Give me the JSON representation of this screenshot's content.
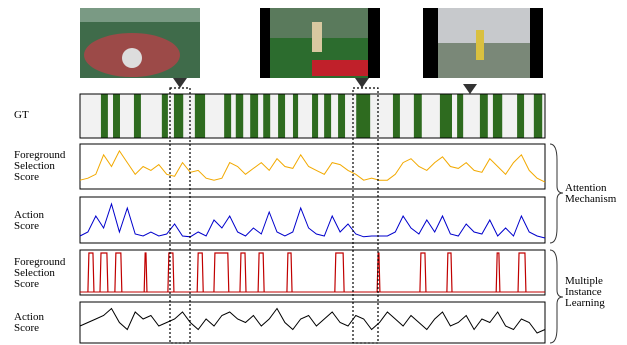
{
  "gt_label": "GT",
  "gt_segments": [
    [
      4.5,
      6.0
    ],
    [
      7.1,
      8.6
    ],
    [
      11.6,
      13.1
    ],
    [
      17.6,
      18.9
    ],
    [
      20.2,
      22.2
    ],
    [
      24.7,
      26.9
    ],
    [
      31.0,
      32.5
    ],
    [
      33.5,
      35.1
    ],
    [
      36.6,
      38.3
    ],
    [
      39.4,
      40.9
    ],
    [
      42.6,
      44.1
    ],
    [
      45.8,
      46.9
    ],
    [
      49.9,
      51.2
    ],
    [
      52.5,
      54.0
    ],
    [
      55.5,
      57.0
    ],
    [
      59.4,
      62.4
    ],
    [
      67.3,
      68.8
    ],
    [
      71.8,
      73.5
    ],
    [
      77.4,
      80.0
    ],
    [
      81.1,
      82.4
    ],
    [
      86.0,
      87.7
    ],
    [
      88.8,
      90.8
    ],
    [
      94.0,
      95.5
    ],
    [
      97.6,
      99.4
    ]
  ],
  "rows": [
    {
      "label": "Foreground Selection Score",
      "color": "#f2a900",
      "values": [
        0.15,
        0.2,
        0.3,
        0.8,
        0.5,
        0.9,
        0.6,
        0.3,
        0.5,
        0.4,
        0.55,
        0.3,
        0.25,
        0.6,
        0.35,
        0.4,
        0.2,
        0.15,
        0.2,
        0.6,
        0.5,
        0.3,
        0.45,
        0.6,
        0.4,
        0.7,
        0.5,
        0.45,
        0.8,
        0.5,
        0.4,
        0.3,
        0.6,
        0.55,
        0.4,
        0.3,
        0.15,
        0.2,
        0.15,
        0.15,
        0.3,
        0.6,
        0.7,
        0.5,
        0.4,
        0.6,
        0.75,
        0.5,
        0.45,
        0.6,
        0.4,
        0.35,
        0.7,
        0.5,
        0.3,
        0.6,
        0.8,
        0.4,
        0.2,
        0.1
      ]
    },
    {
      "label": "Action Score",
      "color": "#0000cc",
      "values": [
        0.1,
        0.2,
        0.6,
        0.3,
        0.9,
        0.2,
        0.8,
        0.15,
        0.1,
        0.2,
        0.1,
        0.15,
        0.4,
        0.1,
        0.08,
        0.2,
        0.1,
        0.5,
        0.3,
        0.6,
        0.2,
        0.1,
        0.3,
        0.15,
        0.7,
        0.2,
        0.1,
        0.2,
        0.8,
        0.3,
        0.15,
        0.1,
        0.6,
        0.2,
        0.4,
        0.15,
        0.08,
        0.1,
        0.1,
        0.1,
        0.2,
        0.6,
        0.3,
        0.15,
        0.5,
        0.2,
        0.6,
        0.15,
        0.1,
        0.4,
        0.2,
        0.15,
        0.5,
        0.1,
        0.3,
        0.1,
        0.6,
        0.2,
        0.1,
        0.05
      ]
    },
    {
      "label": "Foreground Selection Score",
      "color": "#c00000",
      "segments": [
        [
          1.7,
          3.0
        ],
        [
          4.3,
          6.0
        ],
        [
          7.5,
          9.0
        ],
        [
          13.8,
          14.4
        ],
        [
          18.9,
          20.2
        ],
        [
          25.2,
          26.5
        ],
        [
          28.8,
          32.0
        ],
        [
          34.4,
          35.7
        ],
        [
          38.3,
          39.6
        ],
        [
          44.5,
          45.6
        ],
        [
          54.8,
          56.8
        ],
        [
          63.9,
          64.5
        ],
        [
          73.1,
          74.4
        ],
        [
          78.9,
          80.0
        ],
        [
          89.5,
          90.3
        ],
        [
          94.2,
          95.9
        ]
      ]
    },
    {
      "label": "Action Score",
      "color": "#000000",
      "values": [
        0.4,
        0.5,
        0.6,
        0.7,
        0.9,
        0.5,
        0.3,
        0.8,
        0.6,
        0.7,
        0.4,
        0.5,
        0.6,
        0.8,
        0.5,
        0.3,
        0.6,
        0.4,
        0.7,
        0.8,
        0.6,
        0.5,
        0.7,
        0.4,
        0.6,
        0.9,
        0.5,
        0.3,
        0.6,
        0.7,
        0.4,
        0.6,
        0.8,
        0.5,
        0.4,
        0.7,
        0.6,
        0.3,
        0.5,
        0.8,
        0.6,
        0.4,
        0.7,
        0.5,
        0.3,
        0.6,
        0.8,
        0.4,
        0.5,
        0.7,
        0.3,
        0.6,
        0.5,
        0.8,
        0.4,
        0.3,
        0.6,
        0.5,
        0.2,
        0.3
      ]
    }
  ],
  "groups": [
    {
      "label": "Attention Mechanism"
    },
    {
      "label": "Multiple Instance Learning"
    }
  ]
}
